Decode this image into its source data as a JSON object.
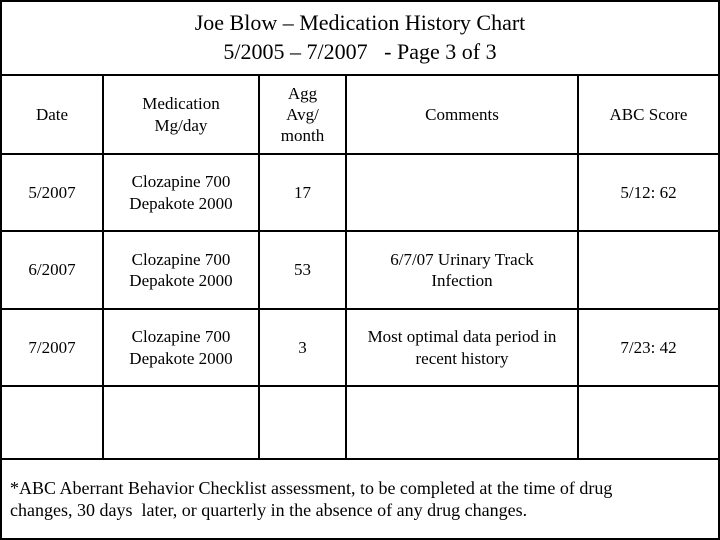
{
  "title": {
    "line1": "Joe Blow – Medication History Chart",
    "line2": "5/2005 – 7/2007   - Page 3 of 3"
  },
  "table": {
    "columns": [
      "Date",
      "Medication\nMg/day",
      "Agg\nAvg/\nmonth",
      "Comments",
      "ABC Score"
    ],
    "rows": [
      {
        "date": "5/2007",
        "medication": "Clozapine 700\nDepakote 2000",
        "agg_avg_month": "17",
        "comments": "",
        "abc_score": "5/12: 62"
      },
      {
        "date": "6/2007",
        "medication": "Clozapine 700\nDepakote 2000",
        "agg_avg_month": "53",
        "comments": "6/7/07 Urinary Track\nInfection",
        "abc_score": ""
      },
      {
        "date": "7/2007",
        "medication": "Clozapine 700\nDepakote 2000",
        "agg_avg_month": "3",
        "comments": "Most optimal data period in\nrecent history",
        "abc_score": "7/23: 42"
      },
      {
        "date": "",
        "medication": "",
        "agg_avg_month": "",
        "comments": "",
        "abc_score": ""
      }
    ]
  },
  "footnote": "*ABC Aberrant Behavior Checklist assessment, to be completed at the time of drug\nchanges, 30 days  later, or quarterly in the absence of any drug changes.",
  "colors": {
    "rule": "#000000",
    "background": "#ffffff",
    "text": "#000000"
  }
}
